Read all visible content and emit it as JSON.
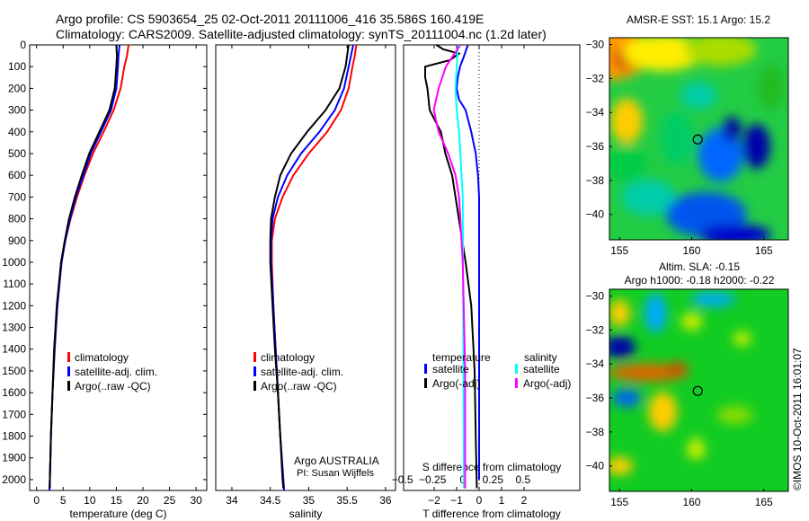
{
  "title_line1": "Argo profile: CS 5903654_25 02-Oct-2011 20111006_416 35.586S 160.419E",
  "title_line2": "Climatology: CARS2009. Satellite-adjusted climatology: synTS_20111004.nc (1.2d later)",
  "credit": "©IMOS 10-Oct-2011 16:01:07",
  "agency": "Argo AUSTRALIA",
  "pi": "PI: Susan Wijffels",
  "colors": {
    "climatology": "#ff0000",
    "satellite": "#0000ff",
    "argo": "#000000",
    "s_satellite": "#00ffff",
    "s_argo": "#ff00ff"
  },
  "chart_data": [
    {
      "type": "line",
      "id": "temperature",
      "xlabel": "temperature (deg C)",
      "ylabel": "",
      "xlim": [
        -1.3,
        32
      ],
      "ylim": [
        2050,
        0
      ],
      "xticks": [
        0,
        5,
        10,
        15,
        20,
        25,
        30
      ],
      "yticks": [
        0,
        100,
        200,
        300,
        400,
        500,
        600,
        700,
        800,
        900,
        1000,
        1100,
        1200,
        1300,
        1400,
        1500,
        1600,
        1700,
        1800,
        1900,
        2000
      ],
      "legend": [
        "climatology",
        "satellite-adj. clim.",
        "Argo(..raw -QC)"
      ],
      "series": [
        {
          "name": "climatology",
          "color": "#ff0000",
          "depth": [
            0,
            50,
            100,
            200,
            300,
            400,
            500,
            600,
            700,
            800,
            900,
            1000,
            1200,
            1400,
            1600,
            1800,
            2000,
            2050
          ],
          "values": [
            17.3,
            17,
            16.5,
            15.8,
            14.5,
            12.6,
            10.6,
            9,
            7.6,
            6.4,
            5.4,
            4.7,
            3.9,
            3.4,
            3.0,
            2.7,
            2.5,
            2.4
          ]
        },
        {
          "name": "satellite-adj. clim.",
          "color": "#0000ff",
          "depth": [
            0,
            50,
            100,
            200,
            300,
            400,
            500,
            600,
            700,
            800,
            900,
            1000,
            1200,
            1400,
            1600,
            1800,
            2000,
            2050
          ],
          "values": [
            15.6,
            15.4,
            15.3,
            15.0,
            14.0,
            12.1,
            10.2,
            8.8,
            7.4,
            6.3,
            5.4,
            4.7,
            3.9,
            3.4,
            3.0,
            2.7,
            2.5,
            2.4
          ]
        },
        {
          "name": "Argo(..raw -QC)",
          "color": "#000000",
          "depth": [
            0,
            50,
            100,
            200,
            300,
            400,
            500,
            600,
            700,
            800,
            900,
            1000,
            1200,
            1400,
            1600,
            1800,
            2000,
            2040
          ],
          "values": [
            15.0,
            15.1,
            15.0,
            14.7,
            13.7,
            11.8,
            9.9,
            8.5,
            7.2,
            6.1,
            5.3,
            4.6,
            3.8,
            3.3,
            3.0,
            2.7,
            2.5,
            2.5
          ]
        }
      ]
    },
    {
      "type": "line",
      "id": "salinity",
      "xlabel": "salinity",
      "xlim": [
        33.79,
        36.13
      ],
      "ylim": [
        2050,
        0
      ],
      "xticks": [
        34,
        34.5,
        35,
        35.5,
        36
      ],
      "legend": [
        "climatology",
        "satellite-adj. clim.",
        "Argo(..raw -QC)"
      ],
      "series": [
        {
          "name": "climatology",
          "color": "#ff0000",
          "depth": [
            0,
            50,
            100,
            200,
            300,
            400,
            500,
            600,
            700,
            800,
            900,
            1000,
            1200,
            1400,
            1600,
            1800,
            2000,
            2050
          ],
          "values": [
            35.62,
            35.6,
            35.57,
            35.52,
            35.42,
            35.24,
            35.0,
            34.8,
            34.66,
            34.56,
            34.52,
            34.52,
            34.54,
            34.57,
            34.6,
            34.63,
            34.67,
            34.68
          ]
        },
        {
          "name": "satellite-adj. clim.",
          "color": "#0000ff",
          "depth": [
            0,
            50,
            100,
            200,
            300,
            400,
            500,
            600,
            700,
            800,
            900,
            1000,
            1200,
            1400,
            1600,
            1800,
            2000,
            2050
          ],
          "values": [
            35.58,
            35.55,
            35.52,
            35.46,
            35.34,
            35.14,
            34.9,
            34.72,
            34.6,
            34.53,
            34.51,
            34.51,
            34.54,
            34.57,
            34.6,
            34.63,
            34.67,
            34.68
          ]
        },
        {
          "name": "Argo(..raw -QC)",
          "color": "#000000",
          "depth": [
            0,
            50,
            100,
            200,
            300,
            400,
            500,
            600,
            700,
            800,
            900,
            1000,
            1200,
            1400,
            1600,
            1800,
            2000,
            2040
          ],
          "values": [
            35.52,
            35.5,
            35.48,
            35.4,
            35.22,
            34.98,
            34.77,
            34.63,
            34.56,
            34.51,
            34.5,
            34.5,
            34.53,
            34.56,
            34.6,
            34.63,
            34.66,
            34.67
          ]
        }
      ]
    },
    {
      "type": "line",
      "id": "difference",
      "xlabel": "T difference from climatology",
      "x2label": "S difference from climatology",
      "xlim": [
        -3.36,
        4.48
      ],
      "x2lim": [
        -0.49,
        0.97
      ],
      "ylim": [
        2050,
        0
      ],
      "xticks": [
        -2,
        -1,
        0,
        1,
        2
      ],
      "x2ticks": [
        -0.5,
        -0.25,
        0,
        0.25,
        0.5
      ],
      "legend_temperature": {
        "title": "temperature",
        "items": [
          "satellite",
          "Argo(-adj)"
        ]
      },
      "legend_salinity": {
        "title": "salinity",
        "items": [
          "satellite",
          "Argo(-adj)"
        ]
      },
      "series": [
        {
          "name": "T satellite",
          "axis": "T",
          "color": "#0000ff",
          "depth": [
            0,
            30,
            60,
            100,
            150,
            200,
            250,
            300,
            400,
            500,
            600,
            700,
            2000
          ],
          "values": [
            -0.5,
            -0.6,
            -0.7,
            -0.85,
            -0.95,
            -1.0,
            -0.9,
            -0.6,
            -0.35,
            -0.15,
            -0.05,
            0,
            0
          ]
        },
        {
          "name": "T Argo(-adj)",
          "axis": "T",
          "color": "#000000",
          "depth": [
            0,
            20,
            40,
            70,
            100,
            150,
            200,
            300,
            400,
            500,
            600,
            700,
            800,
            1000,
            1200,
            1500,
            1800,
            2040
          ],
          "values": [
            -1.9,
            -1.6,
            -0.9,
            -1.3,
            -2.4,
            -2.4,
            -2.3,
            -2.2,
            -1.7,
            -1.5,
            -1.2,
            -1.05,
            -0.9,
            -0.6,
            -0.35,
            -0.2,
            -0.15,
            -0.1
          ]
        },
        {
          "name": "S satellite",
          "axis": "S",
          "color": "#00ffff",
          "depth": [
            0,
            100,
            200,
            300,
            400,
            500,
            600,
            700,
            2040
          ],
          "values": [
            -0.04,
            -0.05,
            -0.06,
            -0.05,
            -0.03,
            -0.02,
            -0.01,
            0,
            0.01
          ]
        },
        {
          "name": "S Argo(-adj)",
          "axis": "S",
          "color": "#ff00ff",
          "depth": [
            0,
            50,
            100,
            200,
            300,
            400,
            500,
            600,
            700,
            1000,
            1500,
            2040
          ],
          "values": [
            -0.02,
            -0.08,
            -0.14,
            -0.2,
            -0.24,
            -0.2,
            -0.12,
            -0.06,
            -0.03,
            0,
            0.02,
            0.02
          ]
        }
      ]
    },
    {
      "type": "heatmap",
      "id": "sst_map",
      "title": "AMSR-E SST: 15.1 Argo: 15.2",
      "xlim": [
        154.3,
        166.7
      ],
      "ylim": [
        -41.5,
        -29.6
      ],
      "xticks": [
        155,
        160,
        165
      ],
      "yticks": [
        -30,
        -32,
        -34,
        -36,
        -38,
        -40
      ],
      "marker": {
        "lon": 160.42,
        "lat": -35.59
      }
    },
    {
      "type": "heatmap",
      "id": "sla_map",
      "title": "Altim. SLA: -0.15",
      "subtitle": "Argo h1000: -0.18 h2000: -0.22",
      "xlim": [
        154.3,
        166.7
      ],
      "ylim": [
        -41.5,
        -29.6
      ],
      "xticks": [
        155,
        160,
        165
      ],
      "yticks": [
        -30,
        -32,
        -34,
        -36,
        -38,
        -40
      ],
      "marker": {
        "lon": 160.42,
        "lat": -35.59
      }
    }
  ]
}
